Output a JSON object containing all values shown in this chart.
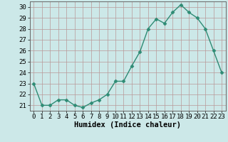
{
  "x": [
    0,
    1,
    2,
    3,
    4,
    5,
    6,
    7,
    8,
    9,
    10,
    11,
    12,
    13,
    14,
    15,
    16,
    17,
    18,
    19,
    20,
    21,
    22,
    23
  ],
  "y": [
    23.0,
    21.0,
    21.0,
    21.5,
    21.5,
    21.0,
    20.8,
    21.2,
    21.5,
    22.0,
    23.2,
    23.2,
    24.6,
    25.9,
    28.0,
    28.9,
    28.5,
    29.5,
    30.2,
    29.5,
    29.0,
    28.0,
    26.0,
    24.0
  ],
  "line_color": "#2e8b74",
  "marker": "D",
  "markersize": 2.5,
  "linewidth": 1.0,
  "xlabel": "Humidex (Indice chaleur)",
  "xlim": [
    -0.5,
    23.5
  ],
  "ylim": [
    20.5,
    30.5
  ],
  "yticks": [
    21,
    22,
    23,
    24,
    25,
    26,
    27,
    28,
    29,
    30
  ],
  "xticks": [
    0,
    1,
    2,
    3,
    4,
    5,
    6,
    7,
    8,
    9,
    10,
    11,
    12,
    13,
    14,
    15,
    16,
    17,
    18,
    19,
    20,
    21,
    22,
    23
  ],
  "bg_color": "#cce8e8",
  "grid_color": "#b89898",
  "tick_fontsize": 6.5,
  "xlabel_fontsize": 7.5
}
